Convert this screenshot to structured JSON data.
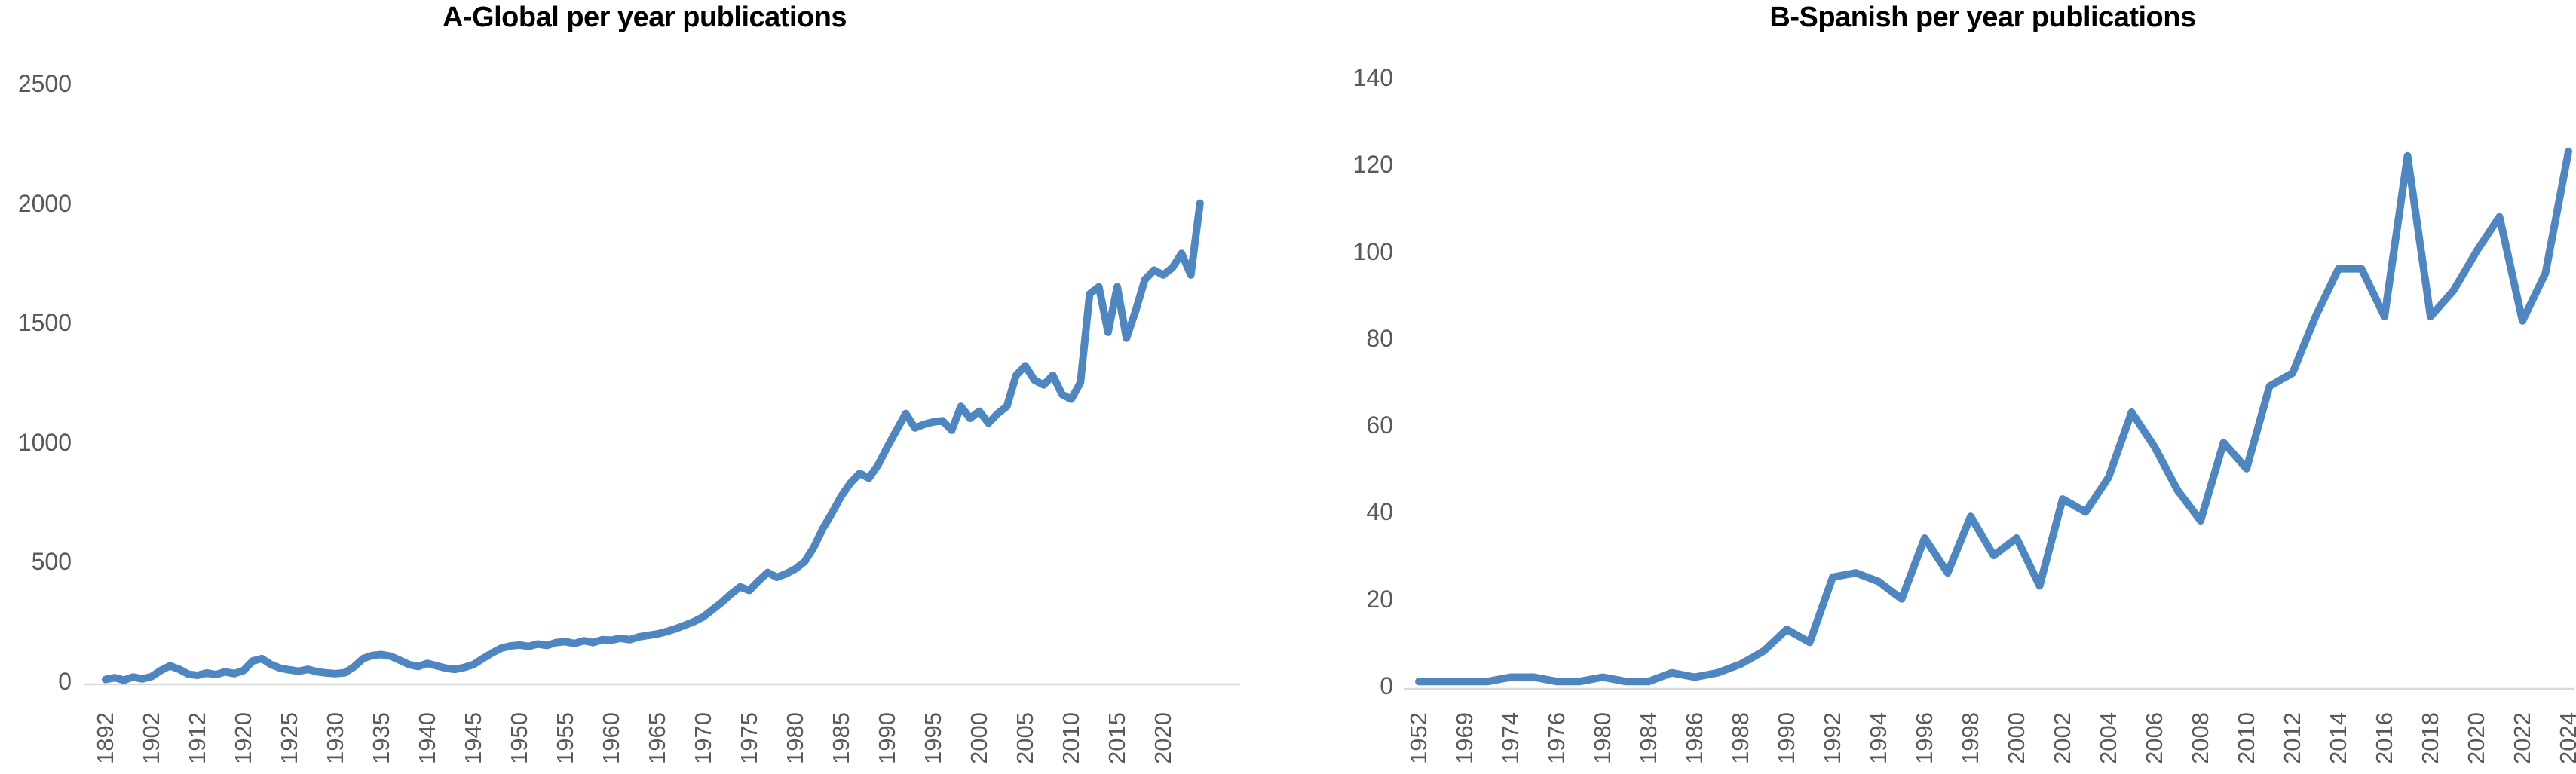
{
  "figure": {
    "background": "#ffffff",
    "accent_line_color": "#4e86c2",
    "axis_line_color": "#d9d9d9",
    "tick_label_color": "#595959",
    "title_color": "#000000"
  },
  "chart_data": [
    {
      "id": "global",
      "type": "line",
      "title": "A-Global per year publications",
      "xlabel": "",
      "ylabel": "",
      "ylim": [
        0,
        2500
      ],
      "yticks": [
        0,
        500,
        1000,
        1500,
        2000,
        2500
      ],
      "grid": "off",
      "legend": "none",
      "line_color": "#4e86c2",
      "x_tick_labels": [
        "1892",
        "1902",
        "1912",
        "1920",
        "1925",
        "1930",
        "1935",
        "1940",
        "1945",
        "1950",
        "1955",
        "1960",
        "1965",
        "1970",
        "1975",
        "1980",
        "1985",
        "1990",
        "1995",
        "2000",
        "2005",
        "2010",
        "2015",
        "2020"
      ],
      "x_label_every": 5,
      "values": [
        8,
        15,
        5,
        18,
        10,
        20,
        45,
        65,
        50,
        30,
        25,
        35,
        28,
        40,
        32,
        45,
        85,
        95,
        70,
        55,
        48,
        42,
        50,
        40,
        35,
        32,
        36,
        60,
        95,
        108,
        112,
        105,
        88,
        70,
        62,
        75,
        65,
        55,
        50,
        58,
        70,
        95,
        118,
        138,
        148,
        152,
        146,
        156,
        150,
        162,
        166,
        158,
        170,
        162,
        174,
        172,
        180,
        174,
        186,
        192,
        198,
        208,
        220,
        235,
        250,
        270,
        300,
        330,
        365,
        395,
        380,
        420,
        455,
        435,
        450,
        470,
        500,
        560,
        640,
        705,
        775,
        830,
        870,
        850,
        905,
        980,
        1050,
        1120,
        1060,
        1075,
        1085,
        1090,
        1050,
        1150,
        1100,
        1130,
        1080,
        1120,
        1150,
        1280,
        1320,
        1260,
        1240,
        1280,
        1200,
        1180,
        1250,
        1620,
        1650,
        1460,
        1650,
        1435,
        1550,
        1680,
        1720,
        1700,
        1730,
        1790,
        1700,
        2000
      ]
    },
    {
      "id": "spanish",
      "type": "line",
      "title": "B-Spanish per year publications",
      "xlabel": "",
      "ylabel": "",
      "ylim": [
        0,
        140
      ],
      "yticks": [
        0,
        20,
        40,
        60,
        80,
        100,
        120,
        140
      ],
      "grid": "off",
      "legend": "none",
      "line_color": "#4e86c2",
      "x_tick_labels": [
        "1952",
        "1969",
        "1974",
        "1976",
        "1980",
        "1984",
        "1986",
        "1988",
        "1990",
        "1992",
        "1994",
        "1996",
        "1998",
        "2000",
        "2002",
        "2004",
        "2006",
        "2008",
        "2010",
        "2012",
        "2014",
        "2016",
        "2018",
        "2020",
        "2022",
        "2024"
      ],
      "x_label_every": 2,
      "values": [
        1,
        1,
        1,
        1,
        2,
        2,
        1,
        1,
        2,
        1,
        1,
        3,
        2,
        3,
        5,
        8,
        13,
        10,
        25,
        26,
        24,
        20,
        34,
        26,
        39,
        30,
        34,
        23,
        43,
        40,
        48,
        63,
        55,
        45,
        38,
        56,
        50,
        69,
        72,
        85,
        96,
        96,
        85,
        122,
        85,
        91,
        100,
        108,
        84,
        95,
        123
      ]
    }
  ]
}
